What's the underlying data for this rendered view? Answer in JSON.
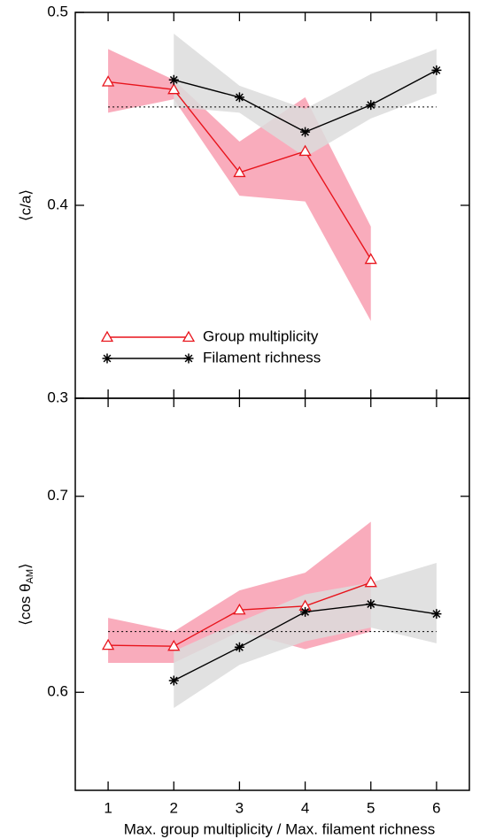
{
  "chart_data": [
    {
      "type": "line",
      "ylabel": "⟨c/a⟩",
      "xlim": [
        0.5,
        6.5
      ],
      "ylim": [
        0.3,
        0.5
      ],
      "yticks": [
        0.3,
        0.4,
        0.5
      ],
      "reference": 0.451,
      "legend": "lower left",
      "series": [
        {
          "name": "Group multiplicity",
          "color": "#e8141c",
          "band_color": "#f8a3b5",
          "marker": "triangle",
          "x": [
            1,
            2,
            3,
            4,
            5
          ],
          "values": [
            0.464,
            0.46,
            0.417,
            0.428,
            0.372
          ],
          "lower": [
            0.448,
            0.455,
            0.405,
            0.402,
            0.34
          ],
          "upper": [
            0.481,
            0.465,
            0.433,
            0.456,
            0.389
          ]
        },
        {
          "name": "Filament richness",
          "color": "#000000",
          "band_color": "#dcdcdc",
          "marker": "asterisk",
          "x": [
            2,
            3,
            4,
            5,
            6
          ],
          "values": [
            0.465,
            0.456,
            0.438,
            0.452,
            0.47
          ],
          "lower": [
            0.451,
            0.448,
            0.425,
            0.445,
            0.458
          ],
          "upper": [
            0.489,
            0.462,
            0.45,
            0.468,
            0.481
          ]
        }
      ]
    },
    {
      "type": "line",
      "ylabel": {
        "main": "⟨cos θ",
        "sub": "AM",
        "close": "⟩"
      },
      "xlabel": "Max. group multiplicity / Max. filament richness",
      "xlim": [
        0.5,
        6.5
      ],
      "xticks": [
        1,
        2,
        3,
        4,
        5,
        6
      ],
      "ylim": [
        0.55,
        0.75
      ],
      "yticks": [
        0.6,
        0.7
      ],
      "reference": 0.631,
      "series": [
        {
          "color": "#e8141c",
          "band_color": "#f8a3b5",
          "marker": "triangle",
          "x": [
            1,
            2,
            3,
            4,
            5
          ],
          "values": [
            0.624,
            0.6235,
            0.642,
            0.644,
            0.656
          ],
          "lower": [
            0.615,
            0.615,
            0.631,
            0.622,
            0.631
          ],
          "upper": [
            0.638,
            0.631,
            0.652,
            0.661,
            0.687
          ]
        },
        {
          "color": "#000000",
          "band_color": "#dcdcdc",
          "marker": "asterisk",
          "x": [
            2,
            3,
            4,
            5,
            6
          ],
          "values": [
            0.606,
            0.623,
            0.641,
            0.645,
            0.64
          ],
          "lower": [
            0.592,
            0.614,
            0.626,
            0.633,
            0.625
          ],
          "upper": [
            0.621,
            0.636,
            0.65,
            0.656,
            0.666
          ]
        }
      ]
    }
  ]
}
